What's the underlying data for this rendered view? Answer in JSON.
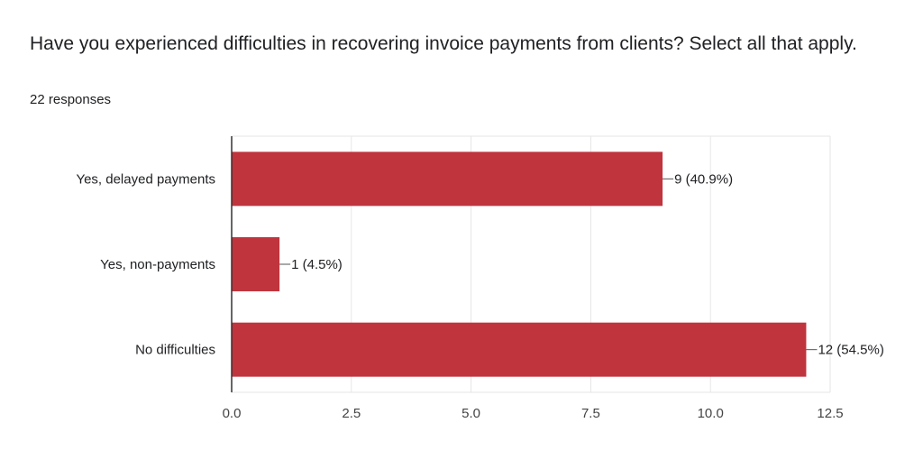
{
  "question": "Have you experienced difficulties in recovering invoice payments from clients? Select all that apply.",
  "responses_count": "22 responses",
  "colors": {
    "bar": "#c0343d",
    "grid": "#e6e6e6",
    "axis": "#333333",
    "text": "#202124"
  },
  "chart_data": {
    "type": "bar",
    "orientation": "horizontal",
    "categories": [
      "Yes, delayed payments",
      "Yes, non-payments",
      "No difficulties"
    ],
    "values": [
      9,
      1,
      12
    ],
    "data_labels": [
      "9 (40.9%)",
      "1 (4.5%)",
      "12 (54.5%)"
    ],
    "xlim": [
      0,
      12.5
    ],
    "xticks": [
      0,
      2.5,
      5,
      7.5,
      10,
      12.5
    ],
    "xtick_labels": [
      "0.0",
      "2.5",
      "5.0",
      "7.5",
      "10.0",
      "12.5"
    ],
    "grid": true
  }
}
